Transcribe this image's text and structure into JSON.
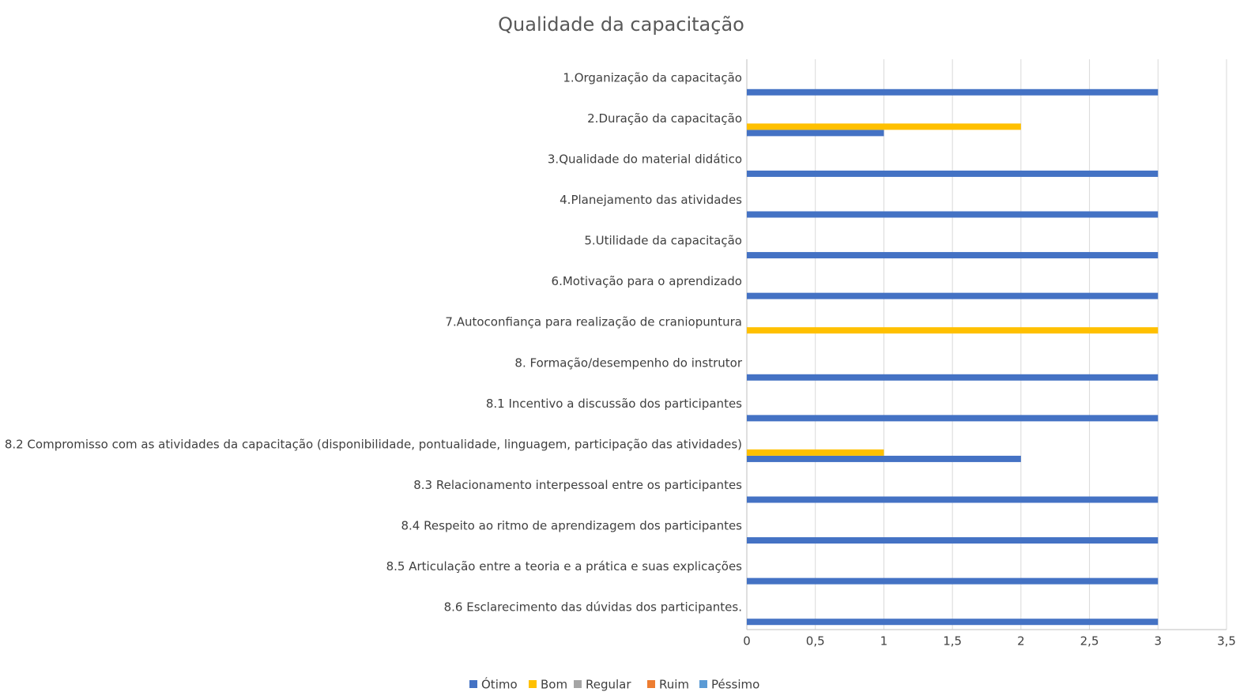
{
  "chart_data": {
    "type": "bar",
    "orientation": "horizontal",
    "title": "Qualidade da capacitação",
    "categories": [
      "1.Organização da capacitação",
      "2.Duração da capacitação",
      "3.Qualidade do material didático",
      "4.Planejamento das atividades",
      "5.Utilidade da capacitação",
      "6.Motivação para o aprendizado",
      "7.Autoconfiança para realização de craniopuntura",
      "8. Formação/desempenho do instrutor",
      "8.1 Incentivo a discussão dos participantes",
      "8.2 Compromisso com as atividades da capacitação (disponibilidade, pontualidade, linguagem, participação das atividades)",
      "8.3 Relacionamento interpessoal entre os participantes",
      "8.4 Respeito ao ritmo de aprendizagem dos participantes",
      "8.5 Articulação entre a teoria e a prática e suas explicações",
      "8.6 Esclarecimento das dúvidas dos participantes."
    ],
    "series": [
      {
        "name": "Ótimo",
        "color": "#4472c4",
        "values": [
          3,
          1,
          3,
          3,
          3,
          3,
          0,
          3,
          3,
          2,
          3,
          3,
          3,
          3
        ]
      },
      {
        "name": "Bom",
        "color": "#ffc000",
        "values": [
          0,
          2,
          0,
          0,
          0,
          0,
          3,
          0,
          0,
          1,
          0,
          0,
          0,
          0
        ]
      },
      {
        "name": "Regular",
        "color": "#a5a5a5",
        "values": [
          0,
          0,
          0,
          0,
          0,
          0,
          0,
          0,
          0,
          0,
          0,
          0,
          0,
          0
        ]
      },
      {
        "name": "Ruim",
        "color": "#ed7d31",
        "values": [
          0,
          0,
          0,
          0,
          0,
          0,
          0,
          0,
          0,
          0,
          0,
          0,
          0,
          0
        ]
      },
      {
        "name": "Péssimo",
        "color": "#5b9bd5",
        "values": [
          0,
          0,
          0,
          0,
          0,
          0,
          0,
          0,
          0,
          0,
          0,
          0,
          0,
          0
        ]
      }
    ],
    "xlim": [
      0,
      3.5
    ],
    "xticks": [
      0,
      {
        "value": 0.5,
        "label": "0,5"
      },
      1,
      {
        "value": 1.5,
        "label": "1,5"
      },
      2,
      {
        "value": 2.5,
        "label": "2,5"
      },
      3,
      {
        "value": 3.5,
        "label": "3,5"
      }
    ],
    "grid": true,
    "legend": "bottom"
  }
}
